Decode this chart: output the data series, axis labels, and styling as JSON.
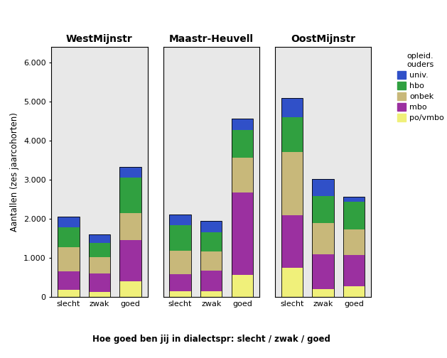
{
  "regions": [
    "WestMijnstr",
    "Maastr-Heuvell",
    "OostMijnstr"
  ],
  "categories": [
    "slecht",
    "zwak",
    "goed"
  ],
  "layers": [
    "po/vmbo",
    "mbo",
    "onbek",
    "hbo",
    "univ."
  ],
  "colors": {
    "po/vmbo": "#f0f07a",
    "mbo": "#9b30a0",
    "onbek": "#c8b87a",
    "hbo": "#30a040",
    "univ.": "#3050c8"
  },
  "data": {
    "WestMijnstr": {
      "slecht": {
        "po/vmbo": 180,
        "mbo": 480,
        "onbek": 620,
        "hbo": 500,
        "univ.": 270
      },
      "zwak": {
        "po/vmbo": 130,
        "mbo": 470,
        "onbek": 430,
        "hbo": 350,
        "univ.": 230
      },
      "goed": {
        "po/vmbo": 400,
        "mbo": 1050,
        "onbek": 700,
        "hbo": 900,
        "univ.": 280
      }
    },
    "Maastr-Heuvell": {
      "slecht": {
        "po/vmbo": 150,
        "mbo": 430,
        "onbek": 600,
        "hbo": 650,
        "univ.": 280
      },
      "zwak": {
        "po/vmbo": 150,
        "mbo": 530,
        "onbek": 480,
        "hbo": 500,
        "univ.": 280
      },
      "goed": {
        "po/vmbo": 570,
        "mbo": 2100,
        "onbek": 900,
        "hbo": 700,
        "univ.": 290
      }
    },
    "OostMijnstr": {
      "slecht": {
        "po/vmbo": 750,
        "mbo": 1350,
        "onbek": 1600,
        "hbo": 900,
        "univ.": 480
      },
      "zwak": {
        "po/vmbo": 200,
        "mbo": 900,
        "onbek": 800,
        "hbo": 680,
        "univ.": 430
      },
      "goed": {
        "po/vmbo": 280,
        "mbo": 800,
        "onbek": 650,
        "hbo": 700,
        "univ.": 130
      }
    }
  },
  "ylabel": "Aantallen (zes jaarcohorten)",
  "xlabel": "Hoe goed ben jij in dialectspr: slecht / zwak / goed",
  "legend_title": "opleid.\nouders",
  "ylim": [
    0,
    6400
  ],
  "yticks": [
    0,
    1000,
    2000,
    3000,
    4000,
    5000,
    6000
  ],
  "ytick_labels": [
    "0",
    "1.000",
    "2.000",
    "3.000",
    "4.000",
    "5.000",
    "6.000"
  ],
  "background_color": "#e8e8e8",
  "figure_bg": "#ffffff"
}
